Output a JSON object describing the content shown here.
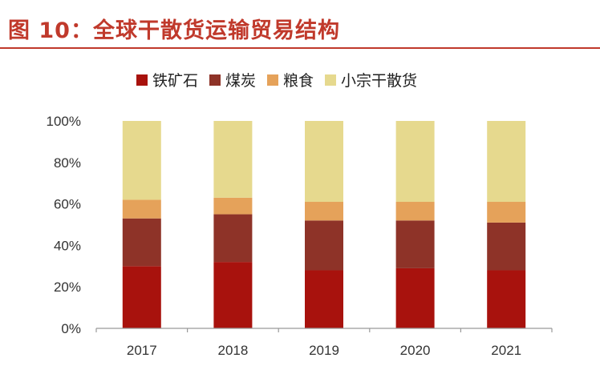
{
  "figure_title": "图 10：全球干散货运输贸易结构",
  "chart_data": {
    "type": "bar",
    "stacked": true,
    "categories": [
      "2017",
      "2018",
      "2019",
      "2020",
      "2021"
    ],
    "series": [
      {
        "name": "铁矿石",
        "color": "#a8120d",
        "values": [
          30,
          32,
          28,
          29,
          28
        ]
      },
      {
        "name": "煤炭",
        "color": "#8e3328",
        "values": [
          23,
          23,
          24,
          23,
          23
        ]
      },
      {
        "name": "粮食",
        "color": "#e5a25a",
        "values": [
          9,
          8,
          9,
          9,
          10
        ]
      },
      {
        "name": "小宗干散货",
        "color": "#e6d98e",
        "values": [
          38,
          37,
          39,
          39,
          39
        ]
      }
    ],
    "title": "图 10：全球干散货运输贸易结构",
    "xlabel": "",
    "ylabel": "",
    "ylim": [
      0,
      100
    ],
    "yticks": [
      "0%",
      "20%",
      "40%",
      "60%",
      "80%",
      "100%"
    ],
    "legend_position": "top",
    "grid": false
  }
}
